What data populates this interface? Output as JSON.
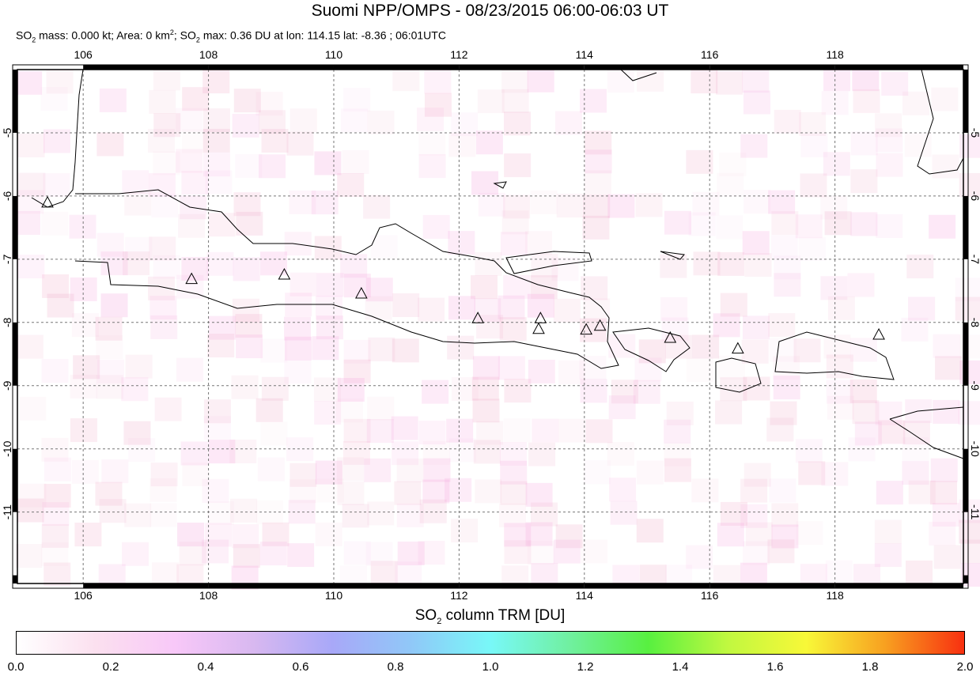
{
  "header": {
    "title": "Suomi NPP/OMPS - 08/23/2015 06:00-06:03 UT",
    "subtitle_parts": [
      "SO",
      "2",
      " mass: 0.000 kt; Area: 0 km",
      "2",
      "; SO",
      "2",
      " max: 0.36 DU at lon: 114.15 lat: -8.36 ; 06:01UTC"
    ]
  },
  "map": {
    "lon_range": [
      104.95,
      120.05
    ],
    "lat_range": [
      -12.13,
      -4.0
    ],
    "lon_ticks": [
      "106",
      "108",
      "110",
      "112",
      "114",
      "116",
      "118"
    ],
    "lat_ticks": [
      "-5",
      "-6",
      "-7",
      "-8",
      "-9",
      "-10",
      "-11"
    ],
    "grid": "dashed",
    "volcano_markers": [
      [
        105.43,
        -6.1
      ],
      [
        107.73,
        -7.31
      ],
      [
        109.21,
        -7.24
      ],
      [
        110.44,
        -7.54
      ],
      [
        112.3,
        -7.93
      ],
      [
        113.3,
        -7.93
      ],
      [
        113.27,
        -8.1
      ],
      [
        114.03,
        -8.11
      ],
      [
        114.25,
        -8.05
      ],
      [
        115.37,
        -8.24
      ],
      [
        116.45,
        -8.41
      ],
      [
        118.7,
        -8.19
      ]
    ]
  },
  "colorbar": {
    "title_parts": [
      "SO",
      "2",
      " column TRM [DU]"
    ],
    "range": [
      0.0,
      2.0
    ],
    "labels": [
      "0.0",
      "0.2",
      "0.4",
      "0.6",
      "0.8",
      "1.0",
      "1.2",
      "1.4",
      "1.6",
      "1.8",
      "2.0"
    ],
    "colors": [
      "#ffffff",
      "#fbe0ef",
      "#f8c8f8",
      "#d8b8f0",
      "#a8a8f8",
      "#90c8f8",
      "#78f8f8",
      "#70f0a0",
      "#58f040",
      "#c0f840",
      "#f8f838",
      "#f8a020",
      "#f83010"
    ]
  }
}
